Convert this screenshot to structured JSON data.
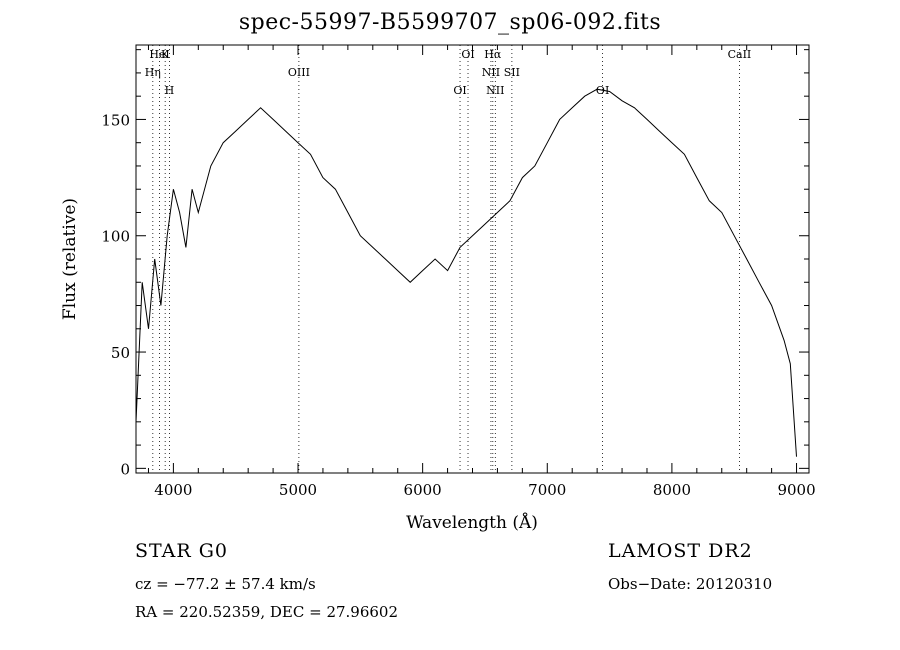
{
  "chart_data": {
    "type": "line",
    "title": "spec-55997-B5599707_sp06-092.fits",
    "xlabel": "Wavelength (Å)",
    "ylabel": "Flux (relative)",
    "xlim": [
      3700,
      9100
    ],
    "ylim": [
      -2,
      182
    ],
    "xticks": [
      "4000",
      "5000",
      "6000",
      "7000",
      "8000",
      "9000"
    ],
    "yticks": [
      "0",
      "50",
      "100",
      "150"
    ],
    "grid": false,
    "series": [
      {
        "x": [
          3700,
          3750,
          3800,
          3850,
          3900,
          3950,
          4000,
          4050,
          4100,
          4150,
          4200,
          4300,
          4400,
          4500,
          4600,
          4700,
          4800,
          4900,
          5000,
          5100,
          5200,
          5300,
          5400,
          5500,
          5600,
          5700,
          5800,
          5900,
          6000,
          6100,
          6200,
          6300,
          6400,
          6500,
          6600,
          6700,
          6800,
          6900,
          7000,
          7100,
          7200,
          7300,
          7400,
          7500,
          7600,
          7700,
          7800,
          7900,
          8000,
          8100,
          8200,
          8300,
          8400,
          8500,
          8600,
          8700,
          8800,
          8900,
          8950,
          9000
        ],
        "y": [
          20,
          80,
          60,
          90,
          70,
          100,
          120,
          110,
          95,
          120,
          110,
          130,
          140,
          145,
          150,
          155,
          150,
          145,
          140,
          135,
          125,
          120,
          110,
          100,
          95,
          90,
          85,
          80,
          85,
          90,
          85,
          95,
          100,
          105,
          110,
          115,
          125,
          130,
          140,
          150,
          155,
          160,
          163,
          162,
          158,
          155,
          150,
          145,
          140,
          135,
          125,
          115,
          110,
          100,
          90,
          80,
          70,
          55,
          45,
          5
        ]
      }
    ],
    "lines": [
      {
        "label": "HeI",
        "x": 3889
      },
      {
        "label": "Hη",
        "x": 3835
      },
      {
        "label": "H",
        "x": 3968
      },
      {
        "label": "K",
        "x": 3934
      },
      {
        "label": "OIII",
        "x": 5007
      },
      {
        "label": "OI",
        "x": 6300
      },
      {
        "label": "OI",
        "x": 6364
      },
      {
        "label": "NII",
        "x": 6548
      },
      {
        "label": "NII",
        "x": 6583
      },
      {
        "label": "Hα",
        "x": 6563
      },
      {
        "label": "SII",
        "x": 6716
      },
      {
        "label": "OI",
        "x": 7444
      },
      {
        "label": "CaII",
        "x": 8542
      }
    ]
  },
  "info": {
    "class": "STAR    G0",
    "survey": "LAMOST DR2",
    "cz": "cz = −77.2 ± 57.4 km/s",
    "obs_date": "Obs−Date: 20120310",
    "radec": "RA = 220.52359, DEC =  27.96602"
  }
}
